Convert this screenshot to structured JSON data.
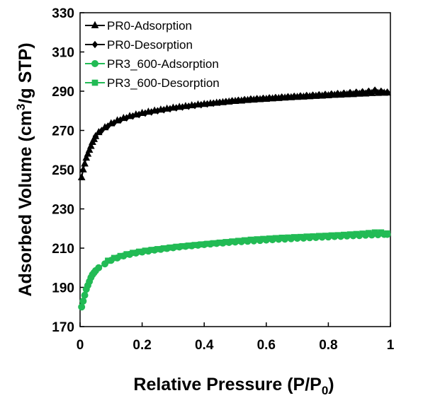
{
  "chart_data": {
    "type": "line",
    "xlabel": "Relative Pressure (P/P",
    "xlabel_sub": "0",
    "xlabel_end": ")",
    "ylabel_parts": [
      "Adsorbed  Volume (cm",
      "3",
      "/g  STP)"
    ],
    "xlim": [
      0,
      1
    ],
    "ylim": [
      170,
      330
    ],
    "x_ticks": [
      {
        "value": 0,
        "label": "0"
      },
      {
        "value": 0.2,
        "label": "0.2"
      },
      {
        "value": 0.4,
        "label": "0.4"
      },
      {
        "value": 0.6,
        "label": "0.6"
      },
      {
        "value": 0.8,
        "label": "0.8"
      },
      {
        "value": 1,
        "label": "1"
      }
    ],
    "y_ticks": [
      {
        "value": 170,
        "label": "170"
      },
      {
        "value": 190,
        "label": "190"
      },
      {
        "value": 210,
        "label": "210"
      },
      {
        "value": 230,
        "label": "230"
      },
      {
        "value": 250,
        "label": "250"
      },
      {
        "value": 270,
        "label": "270"
      },
      {
        "value": 290,
        "label": "290"
      },
      {
        "value": 310,
        "label": "310"
      },
      {
        "value": 330,
        "label": "330"
      }
    ],
    "grid": false,
    "legend_position": "top-left",
    "series": [
      {
        "name": "PR0-Adsorption",
        "color": "#000000",
        "marker": "triangle",
        "x": [
          0.005,
          0.01,
          0.015,
          0.02,
          0.025,
          0.03,
          0.035,
          0.04,
          0.045,
          0.05,
          0.06,
          0.08,
          0.1,
          0.12,
          0.14,
          0.16,
          0.18,
          0.2,
          0.22,
          0.24,
          0.26,
          0.28,
          0.3,
          0.32,
          0.34,
          0.36,
          0.38,
          0.4,
          0.42,
          0.44,
          0.46,
          0.48,
          0.5,
          0.52,
          0.54,
          0.56,
          0.58,
          0.6,
          0.62,
          0.64,
          0.66,
          0.68,
          0.7,
          0.72,
          0.74,
          0.76,
          0.78,
          0.8,
          0.82,
          0.84,
          0.86,
          0.88,
          0.9,
          0.92,
          0.94,
          0.96,
          0.98,
          0.99
        ],
        "y": [
          246,
          250,
          253,
          256,
          258,
          260,
          262,
          264,
          265.5,
          267,
          269,
          271.5,
          273.5,
          275,
          276.2,
          277.2,
          278,
          278.8,
          279.4,
          280,
          280.5,
          281,
          281.5,
          281.9,
          282.3,
          282.7,
          283.1,
          283.4,
          283.7,
          284,
          284.3,
          284.6,
          284.9,
          285.1,
          285.4,
          285.6,
          285.8,
          286,
          286.2,
          286.4,
          286.6,
          286.8,
          287,
          287.1,
          287.3,
          287.5,
          287.6,
          287.8,
          288,
          288.1,
          288.3,
          288.4,
          288.6,
          288.7,
          288.9,
          289,
          289.1,
          289.2
        ]
      },
      {
        "name": "PR0-Desorption",
        "color": "#000000",
        "marker": "diamond",
        "x": [
          0.99,
          0.97,
          0.95,
          0.93,
          0.91,
          0.89,
          0.87,
          0.85,
          0.83,
          0.81,
          0.79,
          0.77,
          0.75,
          0.73,
          0.71,
          0.69,
          0.67,
          0.65,
          0.63,
          0.61,
          0.59,
          0.57,
          0.55,
          0.53,
          0.51,
          0.49,
          0.47,
          0.45,
          0.43,
          0.41,
          0.39,
          0.37,
          0.35,
          0.33,
          0.31,
          0.29,
          0.27,
          0.25,
          0.23,
          0.21,
          0.19,
          0.17,
          0.15,
          0.13,
          0.11,
          0.09,
          0.07,
          0.05
        ],
        "y": [
          289.5,
          290,
          290.5,
          290,
          289.7,
          289.5,
          289.3,
          289,
          288.8,
          288.6,
          288.4,
          288.2,
          288,
          287.8,
          287.6,
          287.4,
          287.2,
          287,
          286.8,
          286.6,
          286.4,
          286.2,
          286,
          285.7,
          285.4,
          285.1,
          284.7,
          284.3,
          283.9,
          283.5,
          283.1,
          282.7,
          282.3,
          281.9,
          281.5,
          281,
          280.5,
          280,
          279.4,
          278.8,
          278.1,
          277.3,
          276.4,
          275.3,
          273.9,
          272.2,
          270,
          267
        ]
      },
      {
        "name": "PR3_600-Adsorption",
        "color": "#22bb55",
        "marker": "circle",
        "x": [
          0.005,
          0.01,
          0.015,
          0.02,
          0.025,
          0.03,
          0.035,
          0.04,
          0.045,
          0.05,
          0.06,
          0.08,
          0.1,
          0.12,
          0.14,
          0.16,
          0.18,
          0.2,
          0.22,
          0.24,
          0.26,
          0.28,
          0.3,
          0.32,
          0.34,
          0.36,
          0.38,
          0.4,
          0.42,
          0.44,
          0.46,
          0.48,
          0.5,
          0.52,
          0.54,
          0.56,
          0.58,
          0.6,
          0.62,
          0.64,
          0.66,
          0.68,
          0.7,
          0.72,
          0.74,
          0.76,
          0.78,
          0.8,
          0.82,
          0.84,
          0.86,
          0.88,
          0.9,
          0.92,
          0.94,
          0.96,
          0.98,
          0.99
        ],
        "y": [
          180,
          183,
          186,
          189,
          191,
          193,
          195,
          196.5,
          197.5,
          198.5,
          200,
          202,
          203.8,
          205,
          206,
          206.8,
          207.5,
          208,
          208.5,
          209,
          209.4,
          209.8,
          210.2,
          210.6,
          210.9,
          211.2,
          211.5,
          211.8,
          212.1,
          212.4,
          212.6,
          212.9,
          213.1,
          213.3,
          213.5,
          213.7,
          213.9,
          214.1,
          214.3,
          214.5,
          214.6,
          214.8,
          215,
          215.1,
          215.3,
          215.4,
          215.6,
          215.7,
          215.9,
          216,
          216.2,
          216.3,
          216.4,
          216.6,
          216.7,
          216.8,
          217,
          217
        ]
      },
      {
        "name": "PR3_600-Desorption",
        "color": "#22bb55",
        "marker": "square",
        "x": [
          0.99,
          0.97,
          0.95,
          0.93,
          0.91,
          0.89,
          0.87,
          0.85,
          0.83,
          0.81,
          0.79,
          0.77,
          0.75,
          0.73,
          0.71,
          0.69,
          0.67,
          0.65,
          0.63,
          0.61,
          0.59,
          0.57,
          0.55,
          0.53,
          0.51,
          0.49,
          0.47,
          0.45,
          0.43,
          0.41,
          0.39,
          0.37,
          0.35,
          0.33,
          0.31,
          0.29,
          0.27,
          0.25,
          0.23,
          0.21,
          0.19,
          0.17,
          0.15,
          0.13,
          0.11,
          0.09
        ],
        "y": [
          217.5,
          218,
          218,
          217.7,
          217.4,
          217.2,
          217,
          216.8,
          216.6,
          216.5,
          216.3,
          216.2,
          216,
          215.9,
          215.7,
          215.6,
          215.4,
          215.3,
          215.1,
          214.9,
          214.7,
          214.5,
          214.3,
          214,
          213.7,
          213.4,
          213.1,
          212.8,
          212.5,
          212.2,
          211.9,
          211.6,
          211.3,
          211,
          210.7,
          210.3,
          209.9,
          209.5,
          209.1,
          208.7,
          208.2,
          207.6,
          206.9,
          206,
          205,
          203.6
        ]
      }
    ]
  }
}
